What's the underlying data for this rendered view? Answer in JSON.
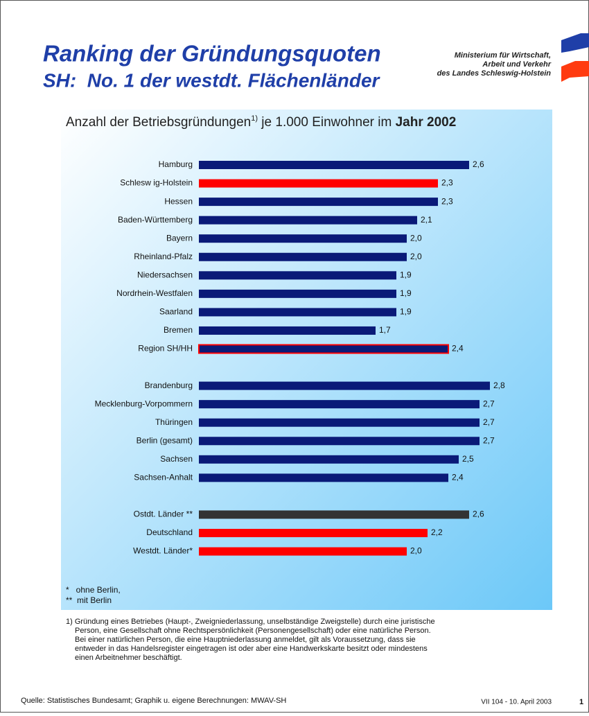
{
  "header": {
    "title": "Ranking der Gründungsquoten",
    "subtitle": "SH:  No. 1 der westdt. Flächenländer",
    "ministry": [
      "Ministerium für Wirtschaft,",
      "Arbeit und Verkehr",
      "des Landes Schleswig-Holstein"
    ]
  },
  "chart_data": {
    "type": "bar",
    "orientation": "horizontal",
    "title": [
      "Anzahl der Betriebsgründungen",
      "1)",
      " je 1.000 Einwohner im ",
      "Jahr 2002"
    ],
    "categories": [
      "Hamburg",
      "Schlesw ig-Holstein",
      "Hessen",
      "Baden-Württemberg",
      "Bayern",
      "Rheinland-Pfalz",
      "Niedersachsen",
      "Nordrhein-Westfalen",
      "Saarland",
      "Bremen",
      "Region SH/HH",
      null,
      "Brandenburg",
      "Mecklenburg-Vorpommern",
      "Thüringen",
      "Berlin (gesamt)",
      "Sachsen",
      "Sachsen-Anhalt",
      null,
      "Ostdt. Länder **",
      "Deutschland",
      "Westdt. Länder*"
    ],
    "values": [
      2.6,
      2.3,
      2.3,
      2.1,
      2.0,
      2.0,
      1.9,
      1.9,
      1.9,
      1.7,
      2.4,
      null,
      2.8,
      2.7,
      2.7,
      2.7,
      2.5,
      2.4,
      null,
      2.6,
      2.2,
      2.0
    ],
    "value_labels": [
      "2,6",
      "2,3",
      "2,3",
      "2,1",
      "2,0",
      "2,0",
      "1,9",
      "1,9",
      "1,9",
      "1,7",
      "2,4",
      null,
      "2,8",
      "2,7",
      "2,7",
      "2,7",
      "2,5",
      "2,4",
      null,
      "2,6",
      "2,2",
      "2,0"
    ],
    "colors": [
      "#0a1a78",
      "#ff0000",
      "#0a1a78",
      "#0a1a78",
      "#0a1a78",
      "#0a1a78",
      "#0a1a78",
      "#0a1a78",
      "#0a1a78",
      "#0a1a78",
      "#0a1a78",
      null,
      "#0a1a78",
      "#0a1a78",
      "#0a1a78",
      "#0a1a78",
      "#0a1a78",
      "#0a1a78",
      null,
      "#333333",
      "#ff0000",
      "#ff0000"
    ],
    "edge_colors": [
      null,
      null,
      null,
      null,
      null,
      null,
      null,
      null,
      null,
      null,
      "#ff0000",
      null,
      null,
      null,
      null,
      null,
      null,
      null,
      null,
      null,
      null,
      null
    ],
    "notes": [
      "*   ohne Berlin,",
      "**  mit Berlin"
    ]
  },
  "footnote": [
    "1) Gründung eines Betriebes (Haupt-, Zweigniederlassung, unselbständige Zweigstelle) durch eine juristische",
    "Person, eine Gesellschaft ohne Rechtspersönlichkeit (Personengesellschaft) oder eine natürliche Person.",
    "Bei einer natürlichen Person, die eine Hauptniederlassung anmeldet, gilt als Voraussetzung, dass sie",
    "entweder in das Handelsregister eingetragen ist oder aber eine Handwerkskarte besitzt oder mindestens",
    "einen Arbeitnehmer beschäftigt."
  ],
  "footer": {
    "source": "Quelle: Statistisches Bundesamt; Graphik u. eigene Berechnungen: MWAV-SH",
    "date": "VII 104 - 10. April 2003",
    "page": "1"
  }
}
